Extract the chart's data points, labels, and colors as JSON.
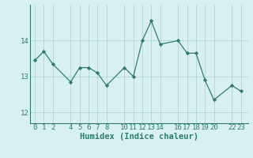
{
  "x": [
    0,
    1,
    2,
    4,
    5,
    6,
    7,
    8,
    10,
    11,
    12,
    13,
    14,
    16,
    17,
    18,
    19,
    20,
    22,
    23
  ],
  "y": [
    13.45,
    13.7,
    13.35,
    12.85,
    13.25,
    13.25,
    13.1,
    12.75,
    13.25,
    13.0,
    14.0,
    14.55,
    13.9,
    14.0,
    13.65,
    13.65,
    12.9,
    12.35,
    12.75,
    12.6
  ],
  "line_color": "#2d7d6f",
  "marker": "D",
  "marker_size": 2.2,
  "bg_color": "#d8f0f0",
  "grid_color": "#afd8d4",
  "xlabel": "Humidex (Indice chaleur)",
  "xlabel_fontsize": 7.5,
  "xlabel_fontweight": "bold",
  "xticks": [
    0,
    1,
    2,
    4,
    5,
    6,
    7,
    8,
    10,
    11,
    12,
    13,
    14,
    16,
    17,
    18,
    19,
    20,
    22,
    23
  ],
  "yticks": [
    12,
    13,
    14
  ],
  "ylim": [
    11.7,
    15.0
  ],
  "xlim": [
    -0.5,
    23.8
  ],
  "tick_fontsize": 6.5,
  "tick_color": "#2d7d6f",
  "spine_color": "#2d7d6f"
}
